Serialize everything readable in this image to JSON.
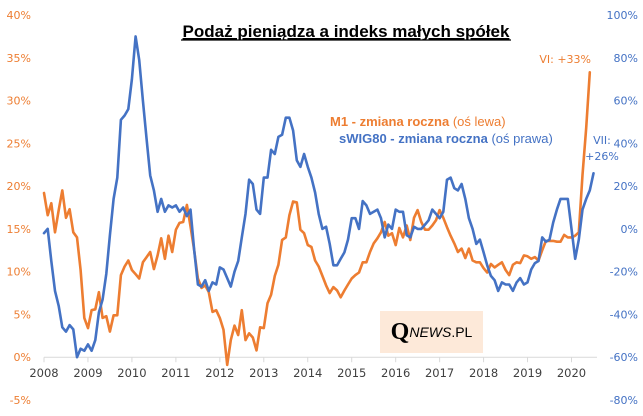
{
  "chart_data": {
    "type": "line",
    "title": "Podaż pieniądza a indeks małych spółek",
    "xlabel": "",
    "x_ticks": [
      "2008",
      "2009",
      "2010",
      "2011",
      "2012",
      "2013",
      "2014",
      "2015",
      "2016",
      "2017",
      "2018",
      "2019",
      "2020"
    ],
    "x_range": [
      2008,
      2020.58
    ],
    "y_left": {
      "label": "M1 (oś lewa)",
      "ylim": [
        -5,
        40
      ],
      "ticks": [
        "-5%",
        "0%",
        "5%",
        "10%",
        "15%",
        "20%",
        "25%",
        "30%",
        "35%",
        "40%"
      ],
      "tick_values": [
        -5,
        0,
        5,
        10,
        15,
        20,
        25,
        30,
        35,
        40
      ]
    },
    "y_right": {
      "label": "sWIG80 (oś prawa)",
      "ylim": [
        -80,
        100
      ],
      "ticks": [
        "-80%",
        "-60%",
        "-40%",
        "-20%",
        "0%",
        "20%",
        "40%",
        "60%",
        "80%",
        "100%"
      ],
      "tick_values": [
        -80,
        -60,
        -40,
        -20,
        0,
        20,
        40,
        60,
        80,
        100
      ]
    },
    "grid": false,
    "legend_placement": "center-right (inline text)",
    "series": [
      {
        "name": "M1 - zmiana roczna",
        "axis": "left",
        "color": "#ed7d31",
        "start": 2008.0,
        "step_months": 1,
        "values": [
          19.2,
          16.6,
          18.0,
          14.6,
          17.2,
          19.5,
          16.3,
          17.3,
          14.6,
          14.0,
          10.2,
          4.6,
          3.4,
          5.5,
          5.6,
          7.6,
          4.6,
          4.8,
          3.0,
          4.9,
          4.9,
          9.6,
          10.6,
          11.3,
          10.2,
          9.7,
          9.2,
          11.1,
          11.7,
          12.3,
          10.3,
          11.9,
          13.9,
          11.5,
          14.2,
          12.3,
          14.9,
          15.7,
          15.8,
          17.8,
          15.3,
          12.5,
          9.2,
          8.1,
          8.4,
          7.6,
          5.3,
          5.5,
          4.6,
          3.2,
          -0.9,
          2.0,
          3.7,
          2.6,
          5.5,
          2.0,
          2.8,
          2.3,
          0.8,
          3.5,
          3.4,
          6.3,
          7.3,
          9.5,
          10.8,
          13.7,
          14.0,
          16.6,
          18.2,
          18.1,
          14.9,
          14.5,
          13.1,
          12.9,
          11.3,
          10.6,
          9.5,
          8.4,
          7.5,
          8.2,
          7.8,
          7.0,
          7.8,
          8.5,
          9.2,
          9.6,
          9.9,
          11.1,
          11.1,
          12.3,
          13.3,
          13.9,
          14.6,
          15.8,
          14.2,
          14.5,
          13.1,
          15.1,
          14.0,
          15.4,
          13.7,
          16.3,
          17.2,
          15.8,
          14.9,
          14.9,
          15.4,
          16.0,
          17.2,
          16.3,
          15.2,
          14.2,
          13.3,
          12.3,
          12.7,
          11.6,
          12.7,
          11.3,
          11.1,
          11.1,
          10.4,
          9.9,
          10.9,
          10.5,
          10.8,
          11.1,
          10.2,
          9.6,
          10.8,
          11.1,
          11.0,
          11.9,
          11.8,
          11.5,
          11.7,
          11.3,
          12.5,
          13.6,
          13.6,
          13.6,
          13.5,
          13.5,
          14.3,
          14.0,
          14.0,
          14.2,
          14.6,
          21.3,
          26.8,
          33.3
        ]
      },
      {
        "name": "sWIG80 - zmiana roczna",
        "axis": "right",
        "color": "#4472c4",
        "start": 2008.0,
        "step_months": 1,
        "values": [
          -2,
          0,
          -15,
          -29,
          -36,
          -46,
          -48,
          -45,
          -47,
          -60,
          -56,
          -57,
          -54,
          -57,
          -52,
          -39,
          -33,
          -21,
          -3,
          14,
          24,
          51,
          53,
          56,
          70,
          90,
          79,
          60,
          42,
          25,
          18,
          8,
          14,
          8,
          11,
          10,
          11,
          8,
          10,
          6,
          9,
          -10,
          -26,
          -27,
          -24,
          -29,
          -25,
          -26,
          -18,
          -19,
          -23,
          -27,
          -20,
          -15,
          -4,
          7,
          23,
          21,
          9,
          7,
          24,
          24,
          37,
          35,
          43,
          44,
          52,
          52,
          46,
          32,
          29,
          35,
          29,
          24,
          17,
          7,
          0,
          1,
          -7,
          -17,
          -17,
          -14,
          -11,
          -5,
          5,
          5,
          0,
          13,
          11,
          7,
          8,
          9,
          5,
          -4,
          2,
          0,
          9,
          8,
          8,
          -3,
          -4,
          1,
          0,
          0,
          2,
          4,
          9,
          7,
          5,
          8,
          23,
          24,
          19,
          18,
          21,
          14,
          5,
          0,
          -7,
          -5,
          -11,
          -17,
          -22,
          -24,
          -29,
          -25,
          -26,
          -26,
          -29,
          -25,
          -23,
          -26,
          -25,
          -19,
          -16,
          -15,
          -4,
          -6,
          -5,
          3,
          9,
          14,
          14,
          14,
          0,
          -14,
          -5,
          9,
          14,
          18,
          26
        ]
      }
    ],
    "annotations": [
      {
        "text": "VI: +33%",
        "series": "M1 - zmiana roczna",
        "color": "#ed7d31"
      },
      {
        "text_line1": "VII:",
        "text_line2": "+26%",
        "series": "sWIG80 - zmiana roczna",
        "color": "#4472c4"
      }
    ]
  },
  "legend": {
    "m1_bold": "M1 - zmiana roczna",
    "m1_norm": " (oś lewa)",
    "swig_bold": "sWIG80 - zmiana roczna",
    "swig_norm": " (oś prawa)"
  },
  "logo": {
    "q": "Q",
    "news": "NEWS",
    "pl": ".PL"
  }
}
